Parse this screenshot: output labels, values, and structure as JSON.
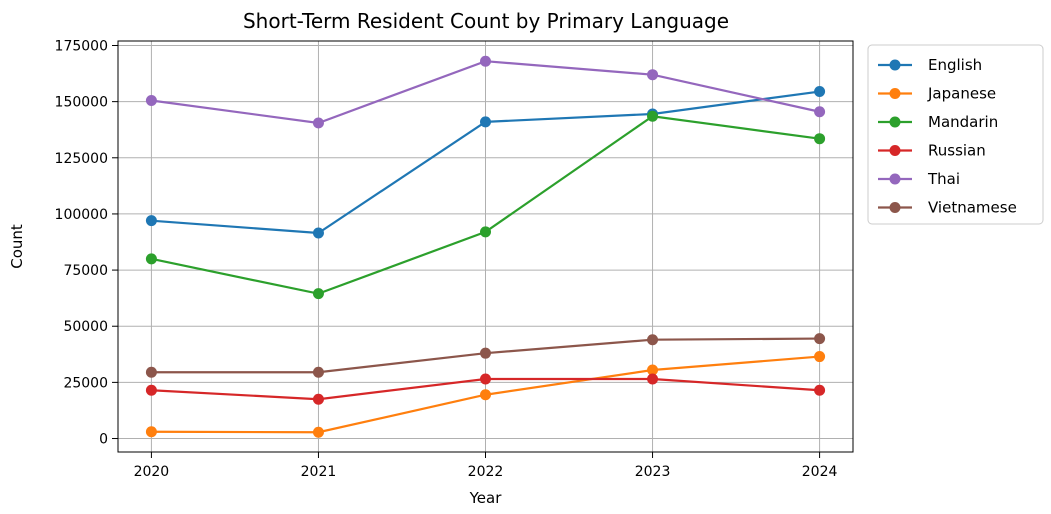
{
  "chart_data": {
    "type": "line",
    "title": "Short-Term Resident Count by Primary Language",
    "xlabel": "Year",
    "ylabel": "Count",
    "x": [
      2020,
      2021,
      2022,
      2023,
      2024
    ],
    "x_tick_labels": [
      "2020",
      "2021",
      "2022",
      "2023",
      "2024"
    ],
    "xlim": [
      2019.8,
      2024.2
    ],
    "ylim": [
      -6000,
      177000
    ],
    "y_ticks": [
      0,
      25000,
      50000,
      75000,
      100000,
      125000,
      150000,
      175000
    ],
    "y_tick_labels": [
      "0",
      "25000",
      "50000",
      "75000",
      "100000",
      "125000",
      "150000",
      "175000"
    ],
    "grid": true,
    "legend_position": "outside-top-right",
    "series": [
      {
        "name": "English",
        "color": "#1f77b4",
        "values": [
          97000,
          91500,
          141000,
          144500,
          154500
        ]
      },
      {
        "name": "Japanese",
        "color": "#ff7f0e",
        "values": [
          3000,
          2800,
          19500,
          30500,
          36500
        ]
      },
      {
        "name": "Mandarin",
        "color": "#2ca02c",
        "values": [
          80000,
          64500,
          92000,
          143500,
          133500
        ]
      },
      {
        "name": "Russian",
        "color": "#d62728",
        "values": [
          21500,
          17500,
          26500,
          26500,
          21500
        ]
      },
      {
        "name": "Thai",
        "color": "#9467bd",
        "values": [
          150500,
          140500,
          168000,
          162000,
          145500
        ]
      },
      {
        "name": "Vietnamese",
        "color": "#8c564b",
        "values": [
          29500,
          29500,
          38000,
          44000,
          44500
        ]
      }
    ]
  }
}
